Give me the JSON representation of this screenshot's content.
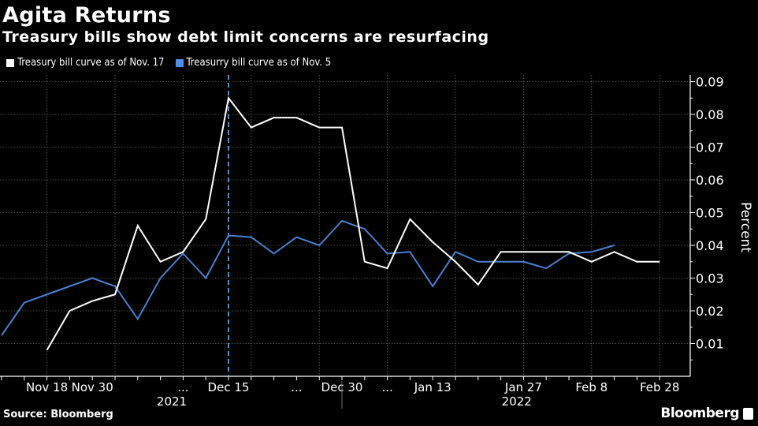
{
  "header": {
    "title": "Agita Returns",
    "subtitle": "Treasury bills show debt limit concerns are resurfacing"
  },
  "footer": {
    "source": "Source: Bloomberg",
    "brand": "Bloomberg"
  },
  "chart_data": {
    "type": "line",
    "title": "Agita Returns",
    "subtitle": "Treasury bills show debt limit concerns are resurfacing",
    "xlabel": "",
    "ylabel": "Percent",
    "ylim": [
      0,
      0.092
    ],
    "yticks": [
      "0.01",
      "0.02",
      "0.03",
      "0.04",
      "0.05",
      "0.06",
      "0.07",
      "0.08",
      "0.09"
    ],
    "ytick_values": [
      0.01,
      0.02,
      0.03,
      0.04,
      0.05,
      0.06,
      0.07,
      0.08,
      0.09
    ],
    "x_count": 30,
    "xtick_labels": [
      {
        "index": 2,
        "label": "Nov 18"
      },
      {
        "index": 4,
        "label": "Nov 30"
      },
      {
        "index": 8,
        "label": "..."
      },
      {
        "index": 10,
        "label": "Dec 15"
      },
      {
        "index": 13,
        "label": "..."
      },
      {
        "index": 15,
        "label": "Dec 30"
      },
      {
        "index": 17,
        "label": "..."
      },
      {
        "index": 19,
        "label": "Jan 13"
      },
      {
        "index": 23,
        "label": "Jan 27"
      },
      {
        "index": 26,
        "label": "Feb 8"
      },
      {
        "index": 29,
        "label": "Feb 28"
      }
    ],
    "year_labels": [
      {
        "index": 7.5,
        "label": "2021"
      },
      {
        "index": 22.7,
        "label": "2022"
      }
    ],
    "year_divider_index": 15,
    "marker_line_index": 10,
    "grid": true,
    "legend_position": "top-left",
    "series": [
      {
        "name": "Treasury bill curve as of Nov. 17",
        "color": "#ffffff",
        "start_index": 2,
        "values": [
          0.008,
          0.02,
          0.023,
          0.025,
          0.046,
          0.035,
          0.038,
          0.048,
          0.085,
          0.076,
          0.079,
          0.079,
          0.076,
          0.076,
          0.035,
          0.033,
          0.048,
          0.041,
          0.035,
          0.028,
          0.038,
          0.038,
          0.038,
          0.038,
          0.035,
          0.038,
          0.035,
          0.035
        ]
      },
      {
        "name": "Treasurry bill curve as of Nov. 5",
        "color": "#4a7fd0",
        "start_index": 0,
        "values": [
          0.0125,
          0.0225,
          0.025,
          0.0275,
          0.03,
          0.0275,
          0.0175,
          0.03,
          0.0375,
          0.03,
          0.043,
          0.0425,
          0.0375,
          0.0425,
          0.04,
          0.0475,
          0.045,
          0.0375,
          0.038,
          0.0275,
          0.038,
          0.035,
          0.035,
          0.035,
          0.033,
          0.0375,
          0.038,
          0.04
        ]
      }
    ]
  }
}
